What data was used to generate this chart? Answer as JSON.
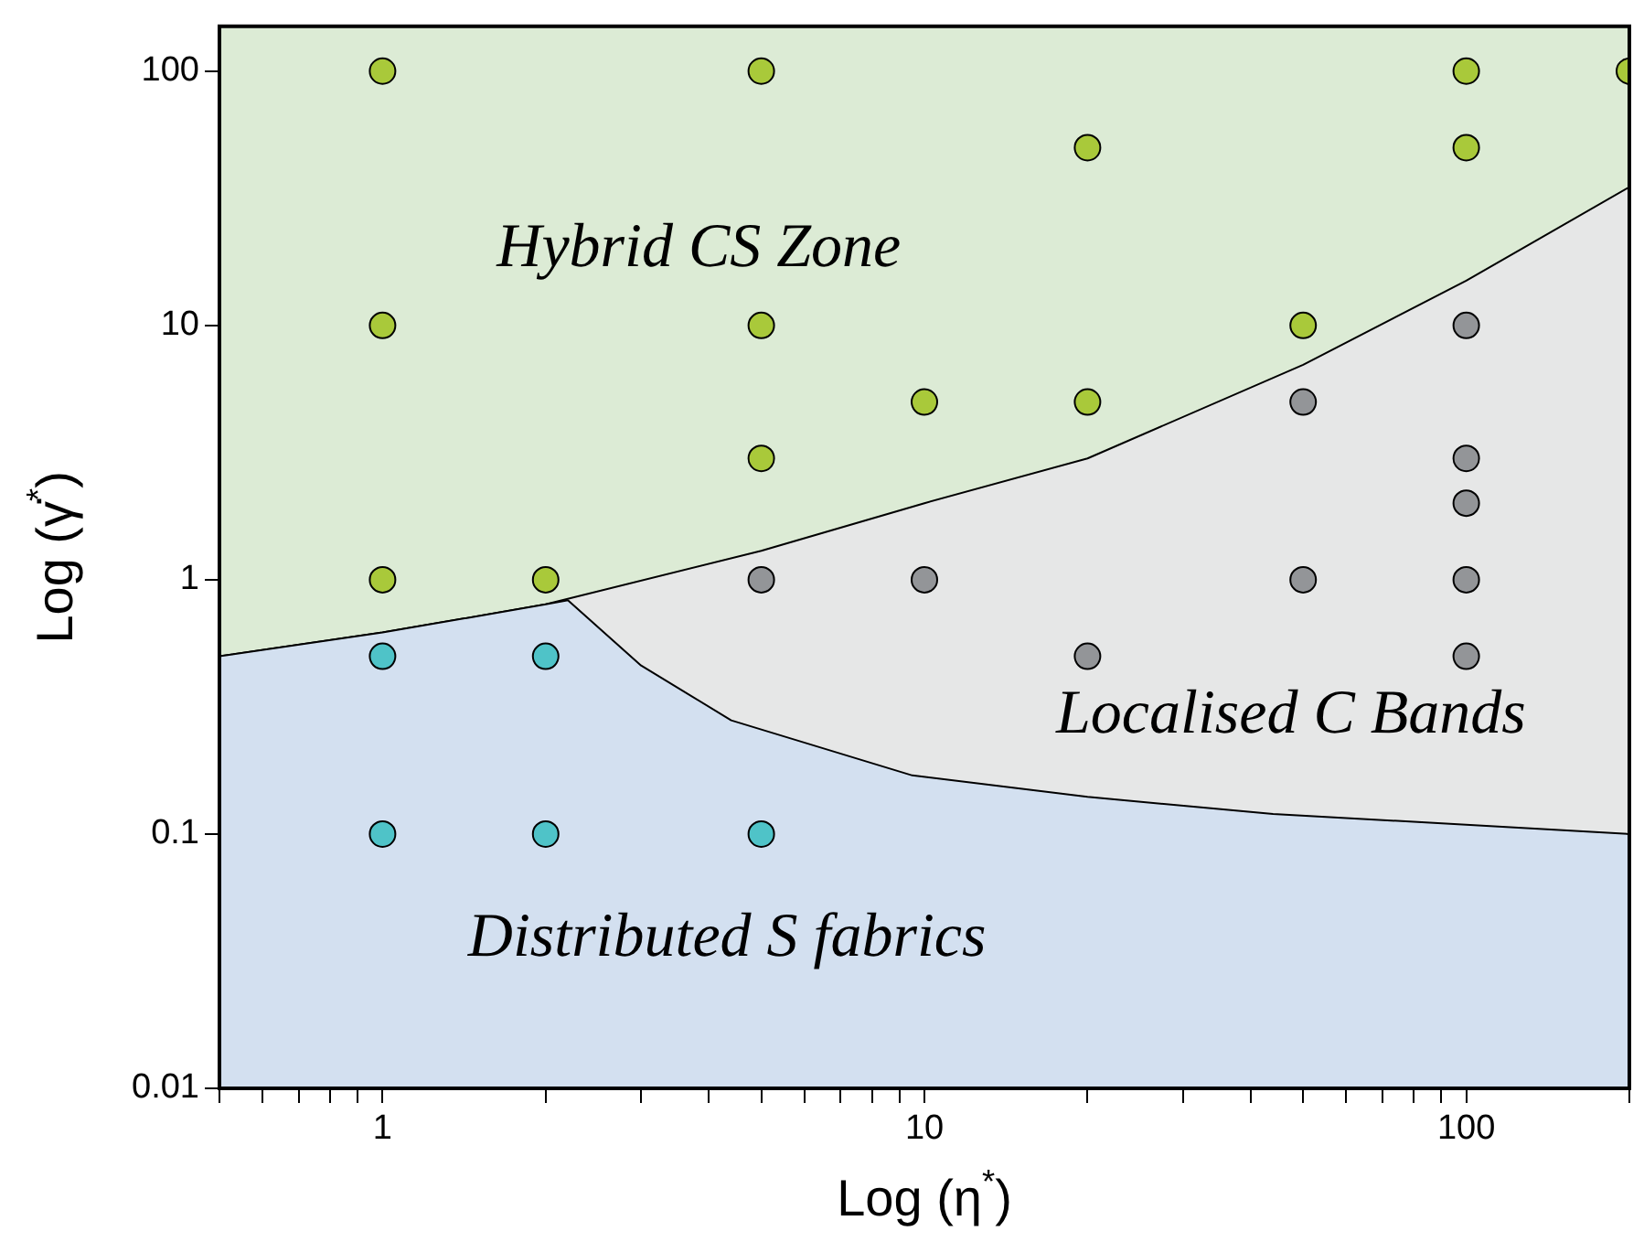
{
  "chart_data": {
    "type": "scatter",
    "xlabel": "Log (η$^{*}$)",
    "ylabel": "Log (γ̇$^{*}$)",
    "log": "xy",
    "legend": false,
    "xlim": [
      0.5,
      200
    ],
    "ylim": [
      0.01,
      150
    ],
    "xticks": [
      {
        "value": 0.5,
        "label": null
      },
      {
        "value": 0.6,
        "label": null
      },
      {
        "value": 0.7,
        "label": null
      },
      {
        "value": 0.8,
        "label": null
      },
      {
        "value": 0.9,
        "label": null
      },
      1,
      {
        "value": 2,
        "label": null
      },
      {
        "value": 3,
        "label": null
      },
      {
        "value": 4,
        "label": null
      },
      {
        "value": 5,
        "label": null
      },
      {
        "value": 6,
        "label": null
      },
      {
        "value": 7,
        "label": null
      },
      {
        "value": 8,
        "label": null
      },
      {
        "value": 9,
        "label": null
      },
      10,
      {
        "value": 20,
        "label": null
      },
      {
        "value": 30,
        "label": null
      },
      {
        "value": 40,
        "label": null
      },
      {
        "value": 50,
        "label": null
      },
      {
        "value": 60,
        "label": null
      },
      {
        "value": 70,
        "label": null
      },
      {
        "value": 80,
        "label": null
      },
      {
        "value": 90,
        "label": null
      },
      100,
      {
        "value": 200,
        "label": null
      }
    ],
    "yticks": [
      0.01,
      0.1,
      1,
      10,
      100
    ],
    "series": [
      {
        "type": "area",
        "color": "#e6e7e7",
        "x": [
          0.5,
          1,
          2,
          5,
          10,
          20,
          50,
          100,
          200
        ],
        "values": [
          0.5,
          0.62,
          0.8,
          1.3,
          2,
          3,
          7,
          15,
          35
        ]
      },
      {
        "type": "area",
        "color": "#d3e0f0",
        "x": [
          0.5,
          1,
          2,
          2.2,
          3,
          4.4,
          9.5,
          20,
          44,
          200
        ],
        "values": [
          0.5,
          0.62,
          0.8,
          0.83,
          0.46,
          0.28,
          0.17,
          0.14,
          0.12,
          0.1
        ]
      },
      {
        "color": "#a9c93a",
        "marker": "circle",
        "x": [
          1,
          5,
          100,
          200,
          20,
          100,
          1,
          5,
          50,
          10,
          20,
          5,
          1,
          2
        ],
        "values": [
          100,
          100,
          100,
          100,
          50,
          50,
          10,
          10,
          10,
          5,
          5,
          3,
          1,
          1
        ]
      },
      {
        "color": "#939598",
        "marker": "circle",
        "x": [
          100,
          50,
          100,
          100,
          5,
          10,
          50,
          100,
          20,
          100
        ],
        "values": [
          10,
          5,
          3,
          2,
          1,
          1,
          1,
          1,
          0.5,
          0.5
        ]
      },
      {
        "color": "#4fc3c8",
        "marker": "circle",
        "x": [
          1,
          2,
          1,
          2,
          5
        ],
        "values": [
          0.5,
          0.5,
          0.1,
          0.1,
          0.1
        ]
      }
    ],
    "bands": [
      {
        "axis": "y",
        "from": 0.01,
        "to": 150,
        "color": "#dcebd5"
      }
    ],
    "annotations": [
      "Hybrid CS Zone",
      "Localised C Bands",
      "Distributed S fabrics"
    ]
  }
}
